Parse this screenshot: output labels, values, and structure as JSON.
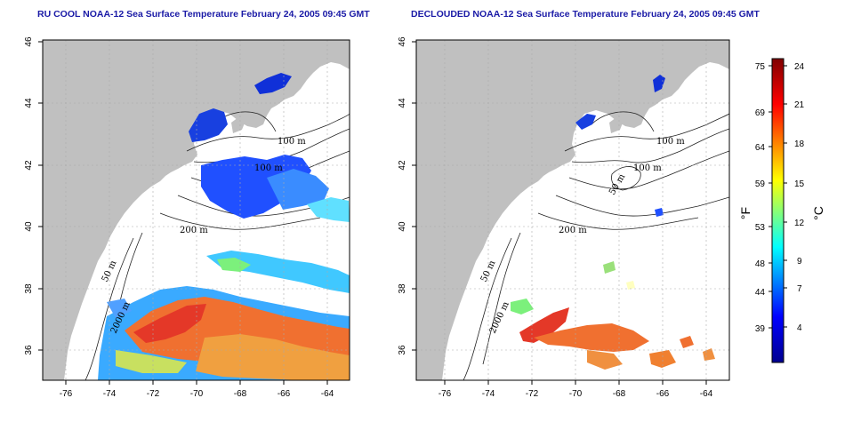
{
  "panels": [
    {
      "id": "left",
      "title": "RU COOL NOAA-12 Sea Surface Temperature February 24, 2005 09:45 GMT",
      "x_ticks": [
        "-76",
        "-74",
        "-72",
        "-70",
        "-68",
        "-66",
        "-64"
      ],
      "y_ticks": [
        "36",
        "38",
        "40",
        "42",
        "44",
        "46"
      ],
      "contour_labels": [
        "100 m",
        "100 m",
        "200 m",
        "50 m",
        "2000 m"
      ]
    },
    {
      "id": "right",
      "title": "DECLOUDED NOAA-12 Sea Surface Temperature February 24, 2005 09:45 GMT",
      "x_ticks": [
        "-76",
        "-74",
        "-72",
        "-70",
        "-68",
        "-66",
        "-64"
      ],
      "y_ticks": [
        "36",
        "38",
        "40",
        "42",
        "44",
        "46"
      ],
      "contour_labels": [
        "100 m",
        "100 m",
        "50 m",
        "200 m",
        "50 m",
        "2000 m"
      ]
    }
  ],
  "colorbar": {
    "fahrenheit_ticks": [
      "75",
      "69",
      "64",
      "59",
      "53",
      "48",
      "44",
      "39"
    ],
    "celsius_ticks": [
      "24",
      "21",
      "18",
      "15",
      "12",
      "9",
      "7",
      "4"
    ],
    "fahrenheit_unit": "°F",
    "celsius_unit": "°C",
    "colors": [
      "#00008f",
      "#0000ff",
      "#00ffff",
      "#ffff00",
      "#ff0000",
      "#800000"
    ]
  },
  "colors": {
    "land": "#c0c0c0",
    "title": "#1a1aa6",
    "grid": "#aaaaaa"
  }
}
